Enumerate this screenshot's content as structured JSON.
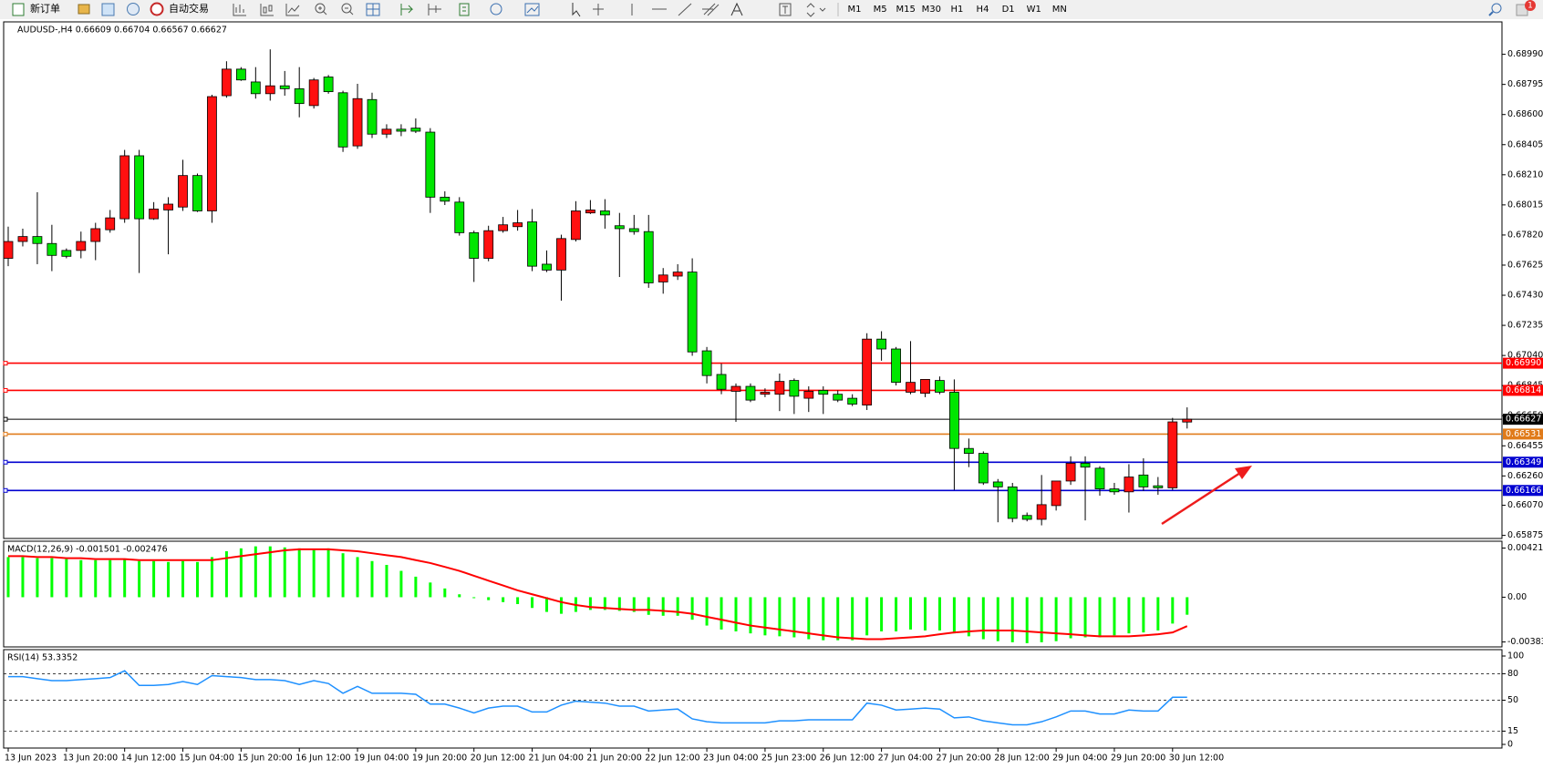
{
  "toolbar": {
    "new_order": "新订单",
    "auto_trading": "自动交易",
    "timeframes": [
      "M1",
      "M5",
      "M15",
      "M30",
      "H1",
      "H4",
      "D1",
      "W1",
      "MN"
    ],
    "alerts": "1"
  },
  "chart_data": [
    {
      "type": "candlestick",
      "title": "AUDUSD-,H4  0.66609 0.66704 0.66567 0.66627",
      "categories": [
        "13 Jun 2023",
        null,
        null,
        null,
        "13 Jun 20:00",
        null,
        null,
        null,
        "14 Jun 12:00",
        null,
        null,
        null,
        "15 Jun 04:00",
        null,
        null,
        null,
        "15 Jun 20:00",
        null,
        null,
        null,
        "16 Jun 12:00",
        null,
        null,
        null,
        "19 Jun 04:00",
        null,
        null,
        null,
        "19 Jun 20:00",
        null,
        null,
        null,
        "20 Jun 12:00",
        null,
        null,
        null,
        "21 Jun 04:00",
        null,
        null,
        null,
        "21 Jun 20:00",
        null,
        null,
        null,
        "22 Jun 12:00",
        null,
        null,
        null,
        "23 Jun 04:00",
        null,
        null,
        null,
        "25 Jun 23:00",
        null,
        null,
        null,
        "26 Jun 12:00",
        null,
        null,
        null,
        "27 Jun 04:00",
        null,
        null,
        null,
        "27 Jun 20:00",
        null,
        null,
        null,
        "28 Jun 12:00",
        null,
        null,
        null,
        "29 Jun 04:00",
        null,
        null,
        null,
        "29 Jun 20:00",
        null,
        null,
        null,
        "30 Jun 12:00",
        null
      ],
      "open": [
        0.67669,
        0.67778,
        0.6781,
        0.67765,
        0.6772,
        0.6772,
        0.67778,
        0.67854,
        0.67925,
        0.68333,
        0.67925,
        0.67982,
        0.68001,
        0.68205,
        0.67976,
        0.68722,
        0.68894,
        0.68811,
        0.68735,
        0.68786,
        0.68767,
        0.68658,
        0.68843,
        0.68741,
        0.68397,
        0.68697,
        0.68473,
        0.68505,
        0.68512,
        0.68486,
        0.68065,
        0.68033,
        0.67835,
        0.67669,
        0.67848,
        0.67874,
        0.67905,
        0.67631,
        0.67593,
        0.67791,
        0.67963,
        0.67976,
        0.6788,
        0.67861,
        0.67842,
        0.67516,
        0.67554,
        0.6758,
        0.6707,
        0.66917,
        0.66808,
        0.6684,
        0.66789,
        0.66789,
        0.66878,
        0.66763,
        0.66814,
        0.66789,
        0.66763,
        0.66719,
        0.67146,
        0.67082,
        0.66802,
        0.66795,
        0.66878,
        0.66802,
        0.66438,
        0.66406,
        0.66221,
        0.66189,
        0.66004,
        0.65979,
        0.66068,
        0.66227,
        0.66342,
        0.6631,
        0.66176,
        0.66157,
        0.66266,
        0.66196,
        0.66183,
        0.66609
      ],
      "high": [
        0.67874,
        0.67861,
        0.68097,
        0.67886,
        0.67733,
        0.67842,
        0.67899,
        0.67982,
        0.68371,
        0.68371,
        0.68033,
        0.68065,
        0.68307,
        0.68218,
        0.68728,
        0.68945,
        0.68907,
        0.68907,
        0.69022,
        0.68882,
        0.68907,
        0.68837,
        0.68856,
        0.68754,
        0.68799,
        0.68741,
        0.68537,
        0.68537,
        0.68575,
        0.68512,
        0.68103,
        0.68065,
        0.67848,
        0.6788,
        0.67937,
        0.67982,
        0.67988,
        0.6772,
        0.67822,
        0.68039,
        0.68046,
        0.68052,
        0.67963,
        0.6795,
        0.6795,
        0.67606,
        0.67631,
        0.67669,
        0.67095,
        0.66987,
        0.66859,
        0.66859,
        0.66827,
        0.66923,
        0.66891,
        0.6684,
        0.6684,
        0.66814,
        0.66789,
        0.67184,
        0.67197,
        0.67095,
        0.67133,
        0.66885,
        0.66904,
        0.66885,
        0.66502,
        0.66419,
        0.6624,
        0.66215,
        0.66023,
        0.66266,
        0.66227,
        0.66387,
        0.66387,
        0.66323,
        0.66215,
        0.66336,
        0.66374,
        0.66253,
        0.66636,
        0.66704
      ],
      "low": [
        0.67618,
        0.67746,
        0.67631,
        0.67586,
        0.67669,
        0.67669,
        0.67657,
        0.67835,
        0.67899,
        0.67574,
        0.67918,
        0.67695,
        0.67976,
        0.67969,
        0.67899,
        0.68709,
        0.68818,
        0.68703,
        0.6869,
        0.68722,
        0.68582,
        0.68639,
        0.68735,
        0.68358,
        0.68378,
        0.68448,
        0.68448,
        0.6846,
        0.6848,
        0.67963,
        0.68014,
        0.67816,
        0.67516,
        0.6765,
        0.67835,
        0.67848,
        0.67586,
        0.6758,
        0.67395,
        0.67778,
        0.67956,
        0.67861,
        0.67548,
        0.67822,
        0.67478,
        0.6744,
        0.67529,
        0.67038,
        0.66859,
        0.66789,
        0.6661,
        0.66738,
        0.6677,
        0.6668,
        0.66661,
        0.66674,
        0.66661,
        0.66738,
        0.66712,
        0.66687,
        0.67006,
        0.66846,
        0.66789,
        0.6677,
        0.66789,
        0.6617,
        0.66317,
        0.66202,
        0.6596,
        0.6596,
        0.65966,
        0.6594,
        0.66036,
        0.66202,
        0.65972,
        0.66132,
        0.66138,
        0.66023,
        0.66164,
        0.66138,
        0.6617,
        0.66567
      ],
      "close": [
        0.67778,
        0.6781,
        0.67765,
        0.67688,
        0.67682,
        0.67778,
        0.67861,
        0.67931,
        0.68333,
        0.67925,
        0.67988,
        0.6802,
        0.68205,
        0.67976,
        0.68716,
        0.68894,
        0.68824,
        0.68735,
        0.68786,
        0.68767,
        0.68671,
        0.68824,
        0.68748,
        0.6839,
        0.68703,
        0.68473,
        0.68505,
        0.68492,
        0.68492,
        0.68065,
        0.68039,
        0.67835,
        0.67669,
        0.67848,
        0.67886,
        0.67899,
        0.67618,
        0.67593,
        0.67797,
        0.67976,
        0.67982,
        0.6795,
        0.67861,
        0.67842,
        0.6751,
        0.67561,
        0.6758,
        0.67063,
        0.6691,
        0.66821,
        0.6684,
        0.66751,
        0.66802,
        0.66872,
        0.66776,
        0.66808,
        0.66789,
        0.66751,
        0.66725,
        0.67146,
        0.67082,
        0.66866,
        0.66866,
        0.66885,
        0.66802,
        0.66438,
        0.66406,
        0.66215,
        0.66189,
        0.65985,
        0.65979,
        0.66074,
        0.66227,
        0.66342,
        0.66317,
        0.66176,
        0.66157,
        0.66253,
        0.66189,
        0.66183,
        0.6661,
        0.66627
      ],
      "up_color": "#ff1010",
      "down_color": "#00e600",
      "ylim": [
        0.65855,
        0.692
      ],
      "yticks": [
        {
          "value": 0.6899,
          "label": "0.68990"
        },
        0.68795,
        {
          "value": 0.686,
          "label": "0.68600"
        },
        0.68405,
        {
          "value": 0.6821,
          "label": "0.68210"
        },
        0.68015,
        {
          "value": 0.6782,
          "label": "0.67820"
        },
        0.67625,
        {
          "value": 0.6743,
          "label": "0.67430"
        },
        0.67235,
        {
          "value": 0.6704,
          "label": "0.67040"
        },
        0.66845,
        {
          "value": 0.6665,
          "label": "0.66650"
        },
        0.66455,
        {
          "value": 0.6626,
          "label": "0.66260"
        },
        {
          "value": 0.6607,
          "label": "0.66070"
        },
        0.65875
      ],
      "levels": [
        {
          "value": 0.6699,
          "label": "0.66990",
          "color": "#ff0000"
        },
        {
          "value": 0.66814,
          "color": "#ff0000"
        },
        {
          "value": 0.66627,
          "color": "#000000"
        },
        {
          "value": 0.66531,
          "color": "#e07b1a"
        },
        {
          "value": 0.66349,
          "color": "#0000d0"
        },
        {
          "value": 0.66166,
          "color": "#0000d0"
        }
      ]
    },
    {
      "type": "macd",
      "title": "MACD(12,26,9) -0.001501 -0.002476",
      "series": [
        {
          "color": "#00ff00",
          "values": [
            0.00344,
            0.00344,
            0.00335,
            0.00335,
            0.00327,
            0.00318,
            0.00318,
            0.00318,
            0.00327,
            0.0031,
            0.0031,
            0.00302,
            0.0031,
            0.00302,
            0.00344,
            0.00394,
            0.00419,
            0.00436,
            0.00436,
            0.00427,
            0.00419,
            0.00411,
            0.00419,
            0.00377,
            0.00344,
            0.0031,
            0.00277,
            0.00226,
            0.00176,
            0.00126,
            0.00075,
            0.00025,
            -8e-05,
            -0.00025,
            -0.00042,
            -0.00059,
            -0.00092,
            -0.00126,
            -0.00142,
            -0.00126,
            -0.00109,
            -0.00109,
            -0.00117,
            -0.00126,
            -0.00151,
            -0.00159,
            -0.00159,
            -0.00193,
            -0.00243,
            -0.00277,
            -0.00293,
            -0.0031,
            -0.00327,
            -0.00335,
            -0.00344,
            -0.0036,
            -0.00369,
            -0.00369,
            -0.00369,
            -0.00327,
            -0.00293,
            -0.00293,
            -0.00277,
            -0.00285,
            -0.00285,
            -0.0031,
            -0.00335,
            -0.0036,
            -0.00377,
            -0.00386,
            -0.00394,
            -0.00386,
            -0.00377,
            -0.00352,
            -0.00344,
            -0.00344,
            -0.00327,
            -0.0031,
            -0.00302,
            -0.00285,
            -0.00226,
            -0.001501
          ]
        },
        {
          "color": "#ff0000",
          "values": [
            0.00352,
            0.00352,
            0.00344,
            0.00344,
            0.00335,
            0.00335,
            0.00327,
            0.00327,
            0.00327,
            0.00318,
            0.00318,
            0.00318,
            0.00318,
            0.00318,
            0.00318,
            0.00335,
            0.00352,
            0.00369,
            0.00385,
            0.00402,
            0.00411,
            0.00411,
            0.00411,
            0.00402,
            0.00394,
            0.00377,
            0.0036,
            0.00344,
            0.00318,
            0.00293,
            0.0026,
            0.00226,
            0.00184,
            0.00142,
            0.00101,
            0.00059,
            0.00025,
            -8e-05,
            -0.00042,
            -0.00067,
            -0.00084,
            -0.00092,
            -0.00101,
            -0.00109,
            -0.00109,
            -0.00117,
            -0.00126,
            -0.00142,
            -0.00168,
            -0.00193,
            -0.00218,
            -0.00243,
            -0.0026,
            -0.00277,
            -0.00293,
            -0.0031,
            -0.00327,
            -0.00344,
            -0.00352,
            -0.0036,
            -0.0036,
            -0.00352,
            -0.00344,
            -0.00335,
            -0.00318,
            -0.00302,
            -0.00293,
            -0.00285,
            -0.00285,
            -0.00285,
            -0.00293,
            -0.00302,
            -0.0031,
            -0.00318,
            -0.00327,
            -0.00335,
            -0.00335,
            -0.00335,
            -0.00327,
            -0.00318,
            -0.00302,
            -0.002476
          ]
        }
      ],
      "ylim": [
        -0.00426,
        0.0048
      ],
      "yticks": [
        0.004215,
        {
          "value": 0,
          "label": "0.00"
        },
        -0.003835
      ]
    },
    {
      "type": "line",
      "title": "RSI(14) 53.3352",
      "series": [
        {
          "color": "#1e90ff",
          "values": [
            76.7,
            76.7,
            74.4,
            72.2,
            72.2,
            73.3,
            74.4,
            75.6,
            83.3,
            66.7,
            66.7,
            67.8,
            71.1,
            67.8,
            77.8,
            76.7,
            75.6,
            73.3,
            73.3,
            72.2,
            67.8,
            72.2,
            68.9,
            57.8,
            65.6,
            57.8,
            57.8,
            57.8,
            56.7,
            45.6,
            45.6,
            41.1,
            35.6,
            41.1,
            43.3,
            43.3,
            36.7,
            36.7,
            44.4,
            48.9,
            47.8,
            46.7,
            43.3,
            43.3,
            37.8,
            38.9,
            40.0,
            28.9,
            25.6,
            24.4,
            24.4,
            24.4,
            24.4,
            26.7,
            26.7,
            27.8,
            27.8,
            27.8,
            27.8,
            46.7,
            44.4,
            38.9,
            40.0,
            41.1,
            40.0,
            30.0,
            31.1,
            26.7,
            24.4,
            22.2,
            22.2,
            25.6,
            31.1,
            37.8,
            37.8,
            34.4,
            34.4,
            38.9,
            37.8,
            37.8,
            53.3,
            53.3352
          ]
        }
      ],
      "ylim": [
        0,
        100
      ],
      "yticks": [
        100,
        80,
        50,
        15,
        0
      ]
    }
  ]
}
